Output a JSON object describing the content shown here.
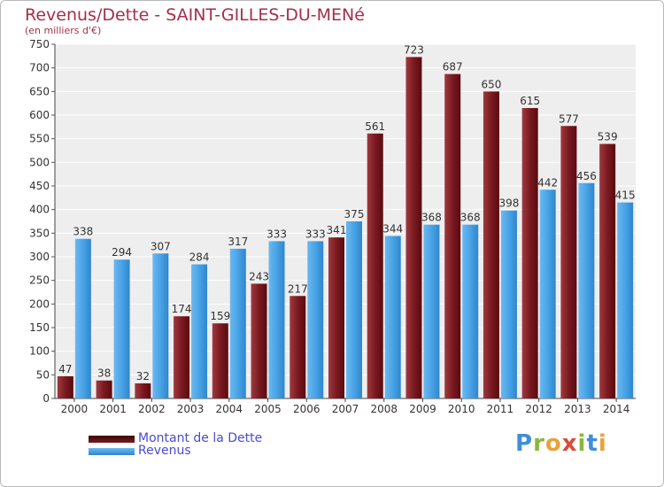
{
  "chart_data": {
    "type": "bar",
    "title": "Revenus/Dette - SAINT-GILLES-DU-MENé",
    "subtitle": "(en milliers d'€)",
    "categories": [
      "2000",
      "2001",
      "2002",
      "2003",
      "2004",
      "2005",
      "2006",
      "2007",
      "2008",
      "2009",
      "2010",
      "2011",
      "2012",
      "2013",
      "2014"
    ],
    "series": [
      {
        "name": "Montant de la Dette",
        "color": "#7a1a20",
        "values": [
          47,
          38,
          32,
          174,
          159,
          243,
          217,
          341,
          561,
          723,
          687,
          650,
          615,
          577,
          539
        ]
      },
      {
        "name": "Revenus",
        "color": "#3f9ee3",
        "values": [
          338,
          294,
          307,
          284,
          317,
          333,
          333,
          375,
          344,
          368,
          368,
          398,
          442,
          456,
          415
        ]
      }
    ],
    "ylim": [
      0,
      750
    ],
    "yticks": [
      0,
      50,
      100,
      150,
      200,
      250,
      300,
      350,
      400,
      450,
      500,
      550,
      600,
      650,
      700,
      750
    ],
    "grid": true,
    "legend_position": "bottom-left"
  },
  "logo": {
    "text": "Proxiti"
  }
}
